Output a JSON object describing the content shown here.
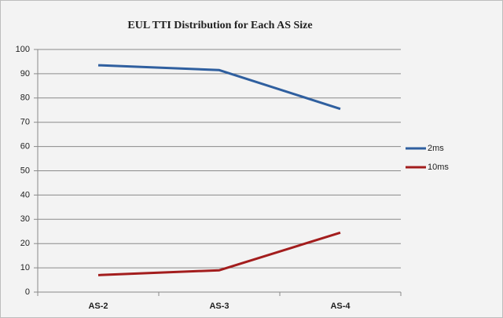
{
  "chart_data": {
    "type": "line",
    "title": "EUL TTI Distribution for Each AS Size",
    "categories": [
      "AS-2",
      "AS-3",
      "AS-4"
    ],
    "series": [
      {
        "name": "2ms",
        "color": "#2f5f9f",
        "values": [
          93.5,
          91.5,
          75.5
        ]
      },
      {
        "name": "10ms",
        "color": "#a31d1d",
        "values": [
          7,
          9,
          24.5
        ]
      }
    ],
    "ylim": [
      0,
      100
    ],
    "yticks": [
      0,
      10,
      20,
      30,
      40,
      50,
      60,
      70,
      80,
      90,
      100
    ],
    "grid": true,
    "legend": "right"
  }
}
